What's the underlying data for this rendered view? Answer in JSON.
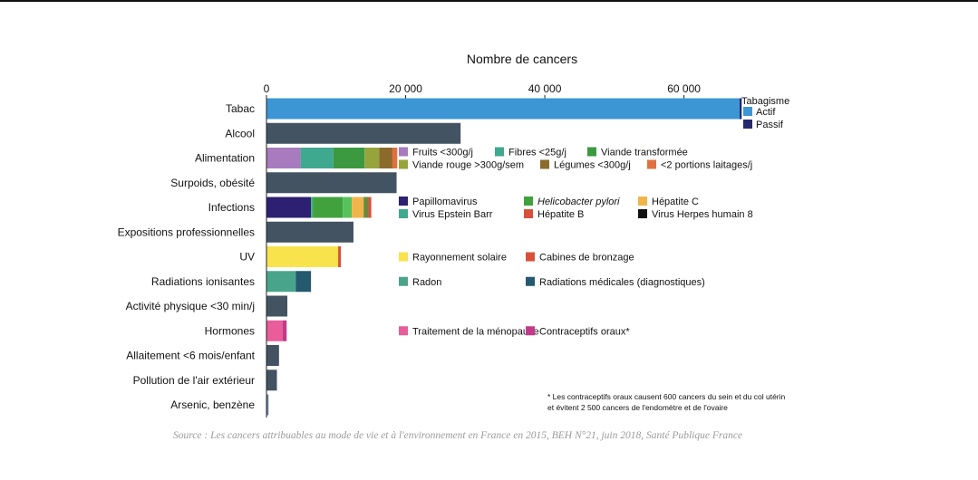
{
  "chart_data": {
    "type": "bar",
    "title": "Nombre de cancers",
    "xlim": [
      0,
      68000
    ],
    "x_ticks": [
      0,
      20000,
      40000,
      60000
    ],
    "x_tick_labels": [
      "0",
      "20 000",
      "40 000",
      "60 000"
    ],
    "categories": [
      {
        "label": "Tabac",
        "segments": [
          {
            "name": "Actif",
            "value": 68000,
            "color": "#3c96d4"
          },
          {
            "name": "Passif",
            "value": 300,
            "color": "#26286e"
          }
        ]
      },
      {
        "label": "Alcool",
        "segments": [
          {
            "value": 27900,
            "color": "#435362"
          }
        ]
      },
      {
        "label": "Alimentation",
        "segments": [
          {
            "name": "Fruits <300g/j",
            "value": 4900,
            "color": "#a77bbd"
          },
          {
            "name": "Fibres <25g/j",
            "value": 4700,
            "color": "#3fa98f"
          },
          {
            "name": "Viande transformée",
            "value": 4500,
            "color": "#3b9a40"
          },
          {
            "name": "Viande rouge >300g/sem",
            "value": 2100,
            "color": "#95a53b"
          },
          {
            "name": "Légumes <300g/j",
            "value": 1900,
            "color": "#8b6a2c"
          },
          {
            "name": "<2 portions laitages/j",
            "value": 700,
            "color": "#e07040"
          }
        ]
      },
      {
        "label": "Surpoids, obésité",
        "segments": [
          {
            "value": 18700,
            "color": "#435362"
          }
        ]
      },
      {
        "label": "Infections",
        "segments": [
          {
            "name": "Papillomavirus",
            "value": 6400,
            "color": "#2d2072"
          },
          {
            "name": "Virus Epstein Barr",
            "value": 100,
            "color": "#3fa98f"
          },
          {
            "name": "Helicobacter pylori",
            "value": 4300,
            "color": "#41a23d"
          },
          {
            "name": "Hépatite B",
            "value": 1300,
            "color": "#56c25d"
          },
          {
            "name": "Hépatite C",
            "value": 1700,
            "color": "#f0b54a"
          },
          {
            "name": "Virus Herpes humain 8",
            "value": 700,
            "color": "#6b8a3e"
          },
          {
            "value": 400,
            "color": "#d9503a"
          }
        ]
      },
      {
        "label": "Expositions professionnelles",
        "segments": [
          {
            "value": 12500,
            "color": "#435362"
          }
        ]
      },
      {
        "label": "UV",
        "segments": [
          {
            "name": "Rayonnement solaire",
            "value": 10300,
            "color": "#f8e34c"
          },
          {
            "name": "Cabines de bronzage",
            "value": 400,
            "color": "#d9503a"
          }
        ]
      },
      {
        "label": "Radiations ionisantes",
        "segments": [
          {
            "name": "Radon",
            "value": 4200,
            "color": "#48a58c"
          },
          {
            "name": "Radiations médicales (diagnostiques)",
            "value": 2200,
            "color": "#24596e"
          }
        ]
      },
      {
        "label": "Activité physique <30 min/j",
        "segments": [
          {
            "value": 3000,
            "color": "#435362"
          }
        ]
      },
      {
        "label": "Hormones",
        "segments": [
          {
            "name": "Traitement de la ménopause",
            "value": 2300,
            "color": "#e85d9a"
          },
          {
            "name": "Contraceptifs oraux*",
            "value": 600,
            "color": "#c13b8a"
          }
        ]
      },
      {
        "label": "Allaitement <6 mois/enfant",
        "segments": [
          {
            "value": 1800,
            "color": "#435362"
          }
        ]
      },
      {
        "label": "Pollution de l'air extérieur",
        "segments": [
          {
            "value": 1500,
            "color": "#435362"
          }
        ]
      },
      {
        "label": "Arsenic, benzène",
        "segments": [
          {
            "value": 300,
            "color": "#6f7fa0"
          }
        ]
      }
    ],
    "legends": [
      {
        "row": 0,
        "column": "right",
        "title": "Tabagisme",
        "items": [
          {
            "label": "Actif",
            "color": "#3c96d4"
          },
          {
            "label": "Passif",
            "color": "#26286e"
          }
        ]
      },
      {
        "row": 2,
        "items": [
          {
            "label": "Fruits <300g/j",
            "color": "#a77bbd"
          },
          {
            "label": "Fibres <25g/j",
            "color": "#3fa98f"
          },
          {
            "label": "Viande transformée",
            "color": "#3b9a40"
          },
          {
            "label": "Viande rouge >300g/sem",
            "color": "#95a53b"
          },
          {
            "label": "Légumes <300g/j",
            "color": "#8b6a2c"
          },
          {
            "label": "<2 portions laitages/j",
            "color": "#e07040"
          }
        ]
      },
      {
        "row": 4,
        "items": [
          {
            "label": "Papillomavirus",
            "color": "#2d2072"
          },
          {
            "label": "Helicobacter pylori",
            "color": "#41a23d",
            "italic": true
          },
          {
            "label": "Hépatite C",
            "color": "#f0b54a"
          },
          {
            "label": "Virus Epstein Barr",
            "color": "#3fa98f"
          },
          {
            "label": "Hépatite B",
            "color": "#d9503a"
          },
          {
            "label": "Virus Herpes humain 8",
            "color": "#111111"
          }
        ]
      },
      {
        "row": 6,
        "items": [
          {
            "label": "Rayonnement solaire",
            "color": "#f8e34c"
          },
          {
            "label": "Cabines de bronzage",
            "color": "#d9503a"
          }
        ]
      },
      {
        "row": 7,
        "items": [
          {
            "label": "Radon",
            "color": "#48a58c"
          },
          {
            "label": "Radiations médicales (diagnostiques)",
            "color": "#24596e"
          }
        ]
      },
      {
        "row": 9,
        "items": [
          {
            "label": "Traitement de la ménopause",
            "color": "#e85d9a"
          },
          {
            "label": "Contraceptifs oraux*",
            "color": "#c13b8a"
          }
        ]
      }
    ],
    "footnote": "* Les contraceptifs oraux causent 600 cancers du sein et du col utérin et évitent 2 500 cancers de l'endomètre et de l'ovaire",
    "source": "Source : Les cancers attribuables au mode de vie et à l'environnement en France en 2015, BEH N°21, juin 2018, Santé Publique France"
  }
}
